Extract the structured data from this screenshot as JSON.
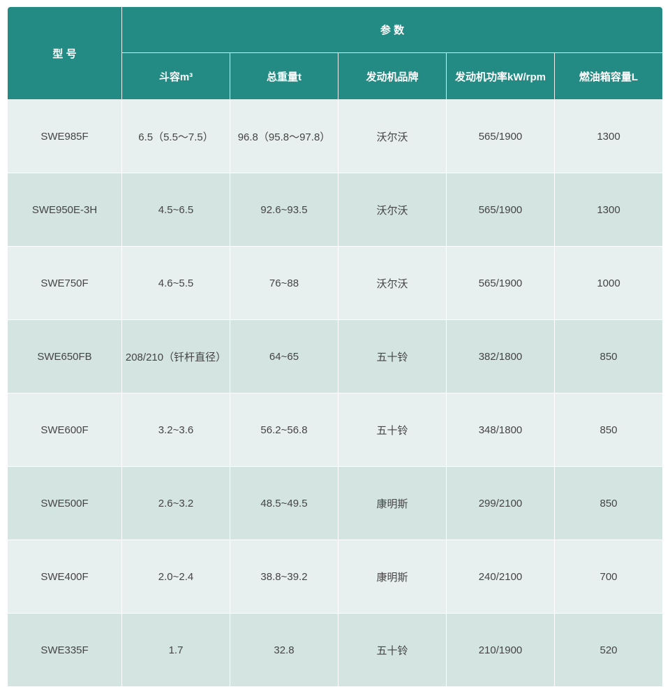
{
  "header": {
    "model": "型 号",
    "params": "参 数",
    "columns": [
      "斗容m³",
      "总重量t",
      "发动机品牌",
      "发动机功率kW/rpm",
      "燃油箱容量L"
    ]
  },
  "rows": [
    [
      "SWE985F",
      "6.5（5.5～7.5）",
      "96.8（95.8～97.8）",
      "沃尔沃",
      "565/1900",
      "1300"
    ],
    [
      "SWE950E-3H",
      "4.5~6.5",
      "92.6~93.5",
      "沃尔沃",
      "565/1900",
      "1300"
    ],
    [
      "SWE750F",
      "4.6~5.5",
      "76~88",
      "沃尔沃",
      "565/1900",
      "1000"
    ],
    [
      "SWE650FB",
      "208/210（钎杆直径）",
      "64~65",
      "五十铃",
      "382/1800",
      "850"
    ],
    [
      "SWE600F",
      "3.2~3.6",
      "56.2~56.8",
      "五十铃",
      "348/1800",
      "850"
    ],
    [
      "SWE500F",
      "2.6~3.2",
      "48.5~49.5",
      "康明斯",
      "299/2100",
      "850"
    ],
    [
      "SWE400F",
      "2.0~2.4",
      "38.8~39.2",
      "康明斯",
      "240/2100",
      "700"
    ],
    [
      "SWE335F",
      "1.7",
      "32.8",
      "五十铃",
      "210/1900",
      "520"
    ]
  ],
  "colors": {
    "header": "#238b83",
    "row_light": "#e8f0ef",
    "row_dark": "#d4e4e1"
  }
}
